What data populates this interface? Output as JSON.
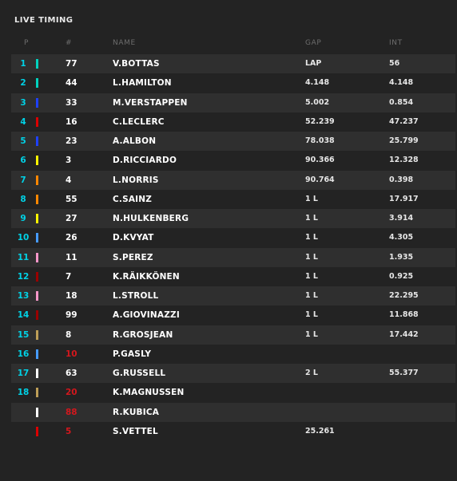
{
  "panel": {
    "title": "LIVE TIMING"
  },
  "columns": {
    "pos": "P",
    "num": "#",
    "name": "NAME",
    "gap": "GAP",
    "int": "INT"
  },
  "colors": {
    "position": "#00d2e6",
    "retired_number": "#d3171d",
    "row_stripe": "#2f2f2f",
    "background": "#232323"
  },
  "rows": [
    {
      "pos": "1",
      "num": "77",
      "name": "V.BOTTAS",
      "gap": "LAP",
      "int": "56",
      "team_color": "#00d2be",
      "out": false
    },
    {
      "pos": "2",
      "num": "44",
      "name": "L.HAMILTON",
      "gap": "4.148",
      "int": "4.148",
      "team_color": "#00d2be",
      "out": false
    },
    {
      "pos": "3",
      "num": "33",
      "name": "M.VERSTAPPEN",
      "gap": "5.002",
      "int": "0.854",
      "team_color": "#1e41ff",
      "out": false
    },
    {
      "pos": "4",
      "num": "16",
      "name": "C.LECLERC",
      "gap": "52.239",
      "int": "47.237",
      "team_color": "#dc0000",
      "out": false
    },
    {
      "pos": "5",
      "num": "23",
      "name": "A.ALBON",
      "gap": "78.038",
      "int": "25.799",
      "team_color": "#1e41ff",
      "out": false
    },
    {
      "pos": "6",
      "num": "3",
      "name": "D.RICCIARDO",
      "gap": "90.366",
      "int": "12.328",
      "team_color": "#fff500",
      "out": false
    },
    {
      "pos": "7",
      "num": "4",
      "name": "L.NORRIS",
      "gap": "90.764",
      "int": "0.398",
      "team_color": "#ff8700",
      "out": false
    },
    {
      "pos": "8",
      "num": "55",
      "name": "C.SAINZ",
      "gap": "1 L",
      "int": "17.917",
      "team_color": "#ff8700",
      "out": false
    },
    {
      "pos": "9",
      "num": "27",
      "name": "N.HULKENBERG",
      "gap": "1 L",
      "int": "3.914",
      "team_color": "#fff500",
      "out": false
    },
    {
      "pos": "10",
      "num": "26",
      "name": "D.KVYAT",
      "gap": "1 L",
      "int": "4.305",
      "team_color": "#469bff",
      "out": false
    },
    {
      "pos": "11",
      "num": "11",
      "name": "S.PEREZ",
      "gap": "1 L",
      "int": "1.935",
      "team_color": "#f596c8",
      "out": false
    },
    {
      "pos": "12",
      "num": "7",
      "name": "K.RÄIKKÖNEN",
      "gap": "1 L",
      "int": "0.925",
      "team_color": "#9b0000",
      "out": false
    },
    {
      "pos": "13",
      "num": "18",
      "name": "L.STROLL",
      "gap": "1 L",
      "int": "22.295",
      "team_color": "#f596c8",
      "out": false
    },
    {
      "pos": "14",
      "num": "99",
      "name": "A.GIOVINAZZI",
      "gap": "1 L",
      "int": "11.868",
      "team_color": "#9b0000",
      "out": false
    },
    {
      "pos": "15",
      "num": "8",
      "name": "R.GROSJEAN",
      "gap": "1 L",
      "int": "17.442",
      "team_color": "#bd9e57",
      "out": false
    },
    {
      "pos": "16",
      "num": "10",
      "name": "P.GASLY",
      "gap": "",
      "int": "",
      "team_color": "#469bff",
      "out": true
    },
    {
      "pos": "17",
      "num": "63",
      "name": "G.RUSSELL",
      "gap": "2 L",
      "int": "55.377",
      "team_color": "#ffffff",
      "out": false
    },
    {
      "pos": "18",
      "num": "20",
      "name": "K.MAGNUSSEN",
      "gap": "",
      "int": "",
      "team_color": "#bd9e57",
      "out": true
    },
    {
      "pos": "",
      "num": "88",
      "name": "R.KUBICA",
      "gap": "",
      "int": "",
      "team_color": "#ffffff",
      "out": true
    },
    {
      "pos": "",
      "num": "5",
      "name": "S.VETTEL",
      "gap": "25.261",
      "int": "",
      "team_color": "#dc0000",
      "out": true
    }
  ]
}
